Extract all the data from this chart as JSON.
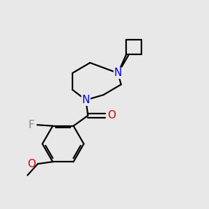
{
  "bg_color": "#e8e8e8",
  "bond_color": "#000000",
  "N_color": "#0000ee",
  "O_color": "#dd0000",
  "F_color": "#888888",
  "line_width": 1.6,
  "figsize": [
    3.0,
    3.0
  ],
  "dpi": 100,
  "xlim": [
    0,
    10
  ],
  "ylim": [
    0,
    10
  ]
}
